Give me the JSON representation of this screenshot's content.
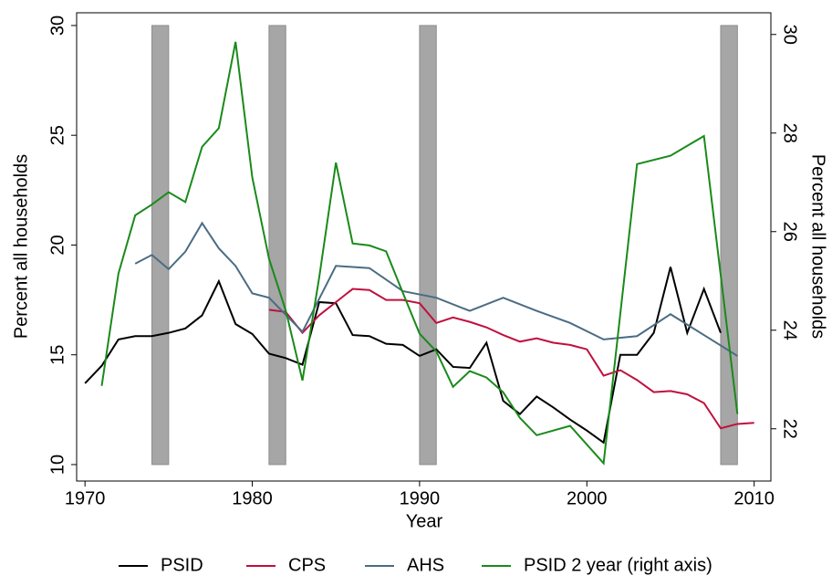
{
  "chart_data": {
    "type": "line",
    "x_label": "Year",
    "y_label": "Percent all households",
    "y2_label": "Percent all households",
    "xlim": [
      1969.5,
      2011
    ],
    "ylim": [
      9.25,
      30.58
    ],
    "y2lim": [
      20.94,
      30.44
    ],
    "xticks": [
      1970,
      1980,
      1990,
      2000,
      2010
    ],
    "yticks": [
      10,
      15,
      20,
      25,
      30
    ],
    "y2ticks": [
      22,
      24,
      26,
      28,
      30
    ],
    "shaded_regions": [
      [
        1974,
        1975
      ],
      [
        1981,
        1982
      ],
      [
        1990,
        1991
      ],
      [
        2008,
        2009
      ]
    ],
    "shade_color": "#a6a6a6",
    "legend_position": "bottom",
    "series": [
      {
        "name": "PSID",
        "color": "#000000",
        "x": [
          1970,
          1971,
          1972,
          1973,
          1974,
          1975,
          1976,
          1977,
          1978,
          1979,
          1980,
          1981,
          1982,
          1983,
          1984,
          1985,
          1986,
          1987,
          1988,
          1989,
          1990,
          1991,
          1992,
          1993,
          1994,
          1995,
          1996,
          1997,
          1998,
          1999,
          2000,
          2001,
          2002,
          2003,
          2004,
          2005,
          2006,
          2007,
          2008
        ],
        "values": [
          13.7,
          14.5,
          15.7,
          15.85,
          15.85,
          16.0,
          16.2,
          16.8,
          18.35,
          16.4,
          15.95,
          15.05,
          14.85,
          14.55,
          17.4,
          17.35,
          15.9,
          15.85,
          15.5,
          15.45,
          14.95,
          15.25,
          14.45,
          14.4,
          15.55,
          12.9,
          12.3,
          13.1,
          12.6,
          12.05,
          11.55,
          11.0,
          15.0,
          15.0,
          16.0,
          19.0,
          16.0,
          18.0,
          16.0
        ]
      },
      {
        "name": "CPS",
        "color": "#c0103e",
        "x": [
          1981,
          1982,
          1983,
          1984,
          1985,
          1986,
          1987,
          1988,
          1989,
          1990,
          1991,
          1992,
          1993,
          1994,
          1995,
          1996,
          1997,
          1998,
          1999,
          2000,
          2001,
          2002,
          2003,
          2004,
          2005,
          2006,
          2007,
          2008,
          2009,
          2010
        ],
        "values": [
          17.05,
          16.95,
          16.0,
          16.8,
          17.4,
          18.0,
          17.95,
          17.5,
          17.5,
          17.35,
          16.45,
          16.7,
          16.5,
          16.25,
          15.9,
          15.6,
          15.75,
          15.55,
          15.45,
          15.25,
          14.05,
          14.3,
          13.85,
          13.3,
          13.35,
          13.2,
          12.8,
          11.65,
          11.85,
          11.9
        ]
      },
      {
        "name": "AHS",
        "color": "#4a6c84",
        "x": [
          1973,
          1974,
          1975,
          1976,
          1977,
          1978,
          1979,
          1980,
          1981,
          1983,
          1985,
          1987,
          1989,
          1991,
          1993,
          1995,
          1997,
          1999,
          2001,
          2003,
          2005,
          2007,
          2009
        ],
        "values": [
          19.15,
          19.55,
          18.9,
          19.7,
          21.0,
          19.85,
          19.05,
          17.8,
          17.6,
          16.05,
          19.05,
          18.95,
          17.9,
          17.6,
          17.0,
          17.6,
          17.0,
          16.45,
          15.7,
          15.85,
          16.85,
          15.9,
          14.95
        ]
      },
      {
        "name": "PSID 2 year (right axis)",
        "color": "#1a8a1a",
        "axis": "y2",
        "x": [
          1971,
          1972,
          1973,
          1974,
          1975,
          1976,
          1977,
          1978,
          1979,
          1980,
          1981,
          1982,
          1983,
          1984,
          1985,
          1986,
          1987,
          1988,
          1989,
          1990,
          1991,
          1992,
          1993,
          1994,
          1995,
          1996,
          1997,
          1999,
          2001,
          2003,
          2005,
          2007,
          2009
        ],
        "values": [
          22.87,
          25.15,
          26.33,
          26.55,
          26.8,
          26.6,
          27.72,
          28.1,
          29.85,
          27.1,
          25.45,
          24.4,
          22.98,
          25.07,
          27.4,
          25.76,
          25.72,
          25.6,
          24.76,
          23.93,
          23.57,
          22.85,
          23.17,
          23.04,
          22.74,
          22.22,
          21.87,
          22.06,
          21.3,
          27.37,
          27.54,
          27.94,
          22.3
        ]
      }
    ]
  }
}
